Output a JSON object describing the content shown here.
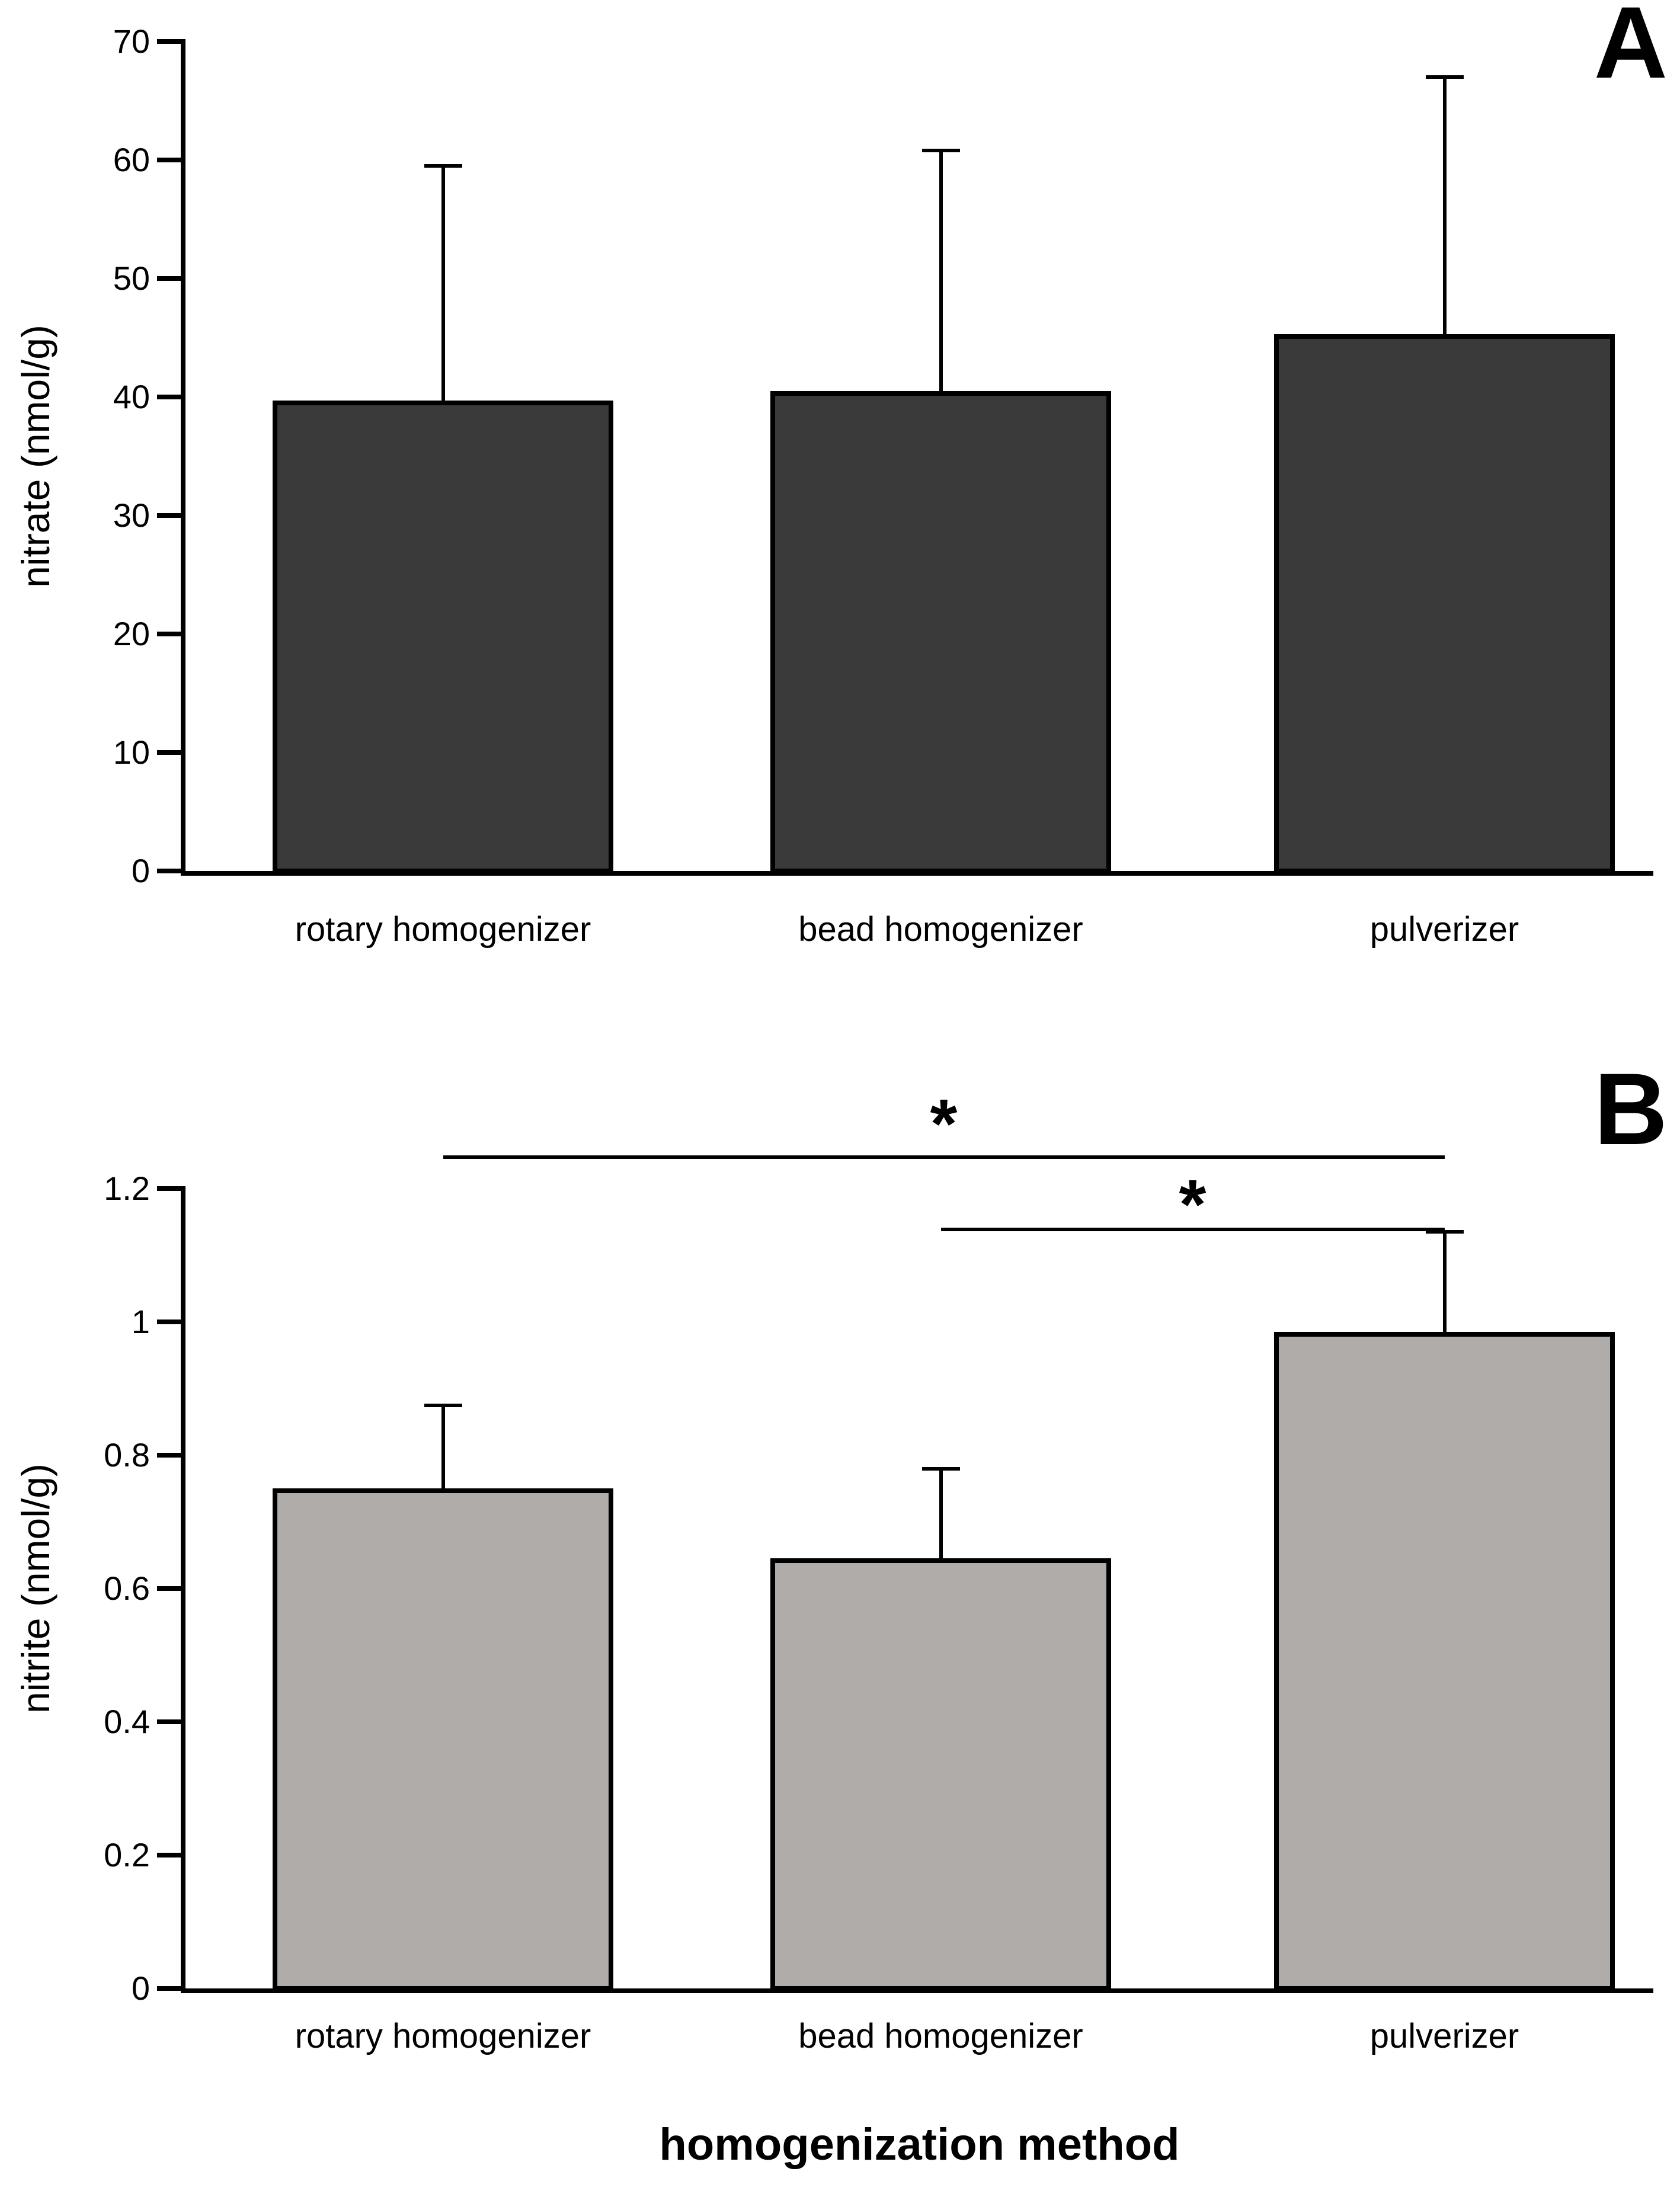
{
  "xlabel": "homogenization method",
  "chart_data": [
    {
      "type": "bar",
      "panel_label": "A",
      "title": "",
      "xlabel": "",
      "ylabel": "nitrate (nmol/g)",
      "categories": [
        "rotary homogenizer",
        "bead homogenizer",
        "pulverizer"
      ],
      "values": [
        39.7,
        40.5,
        45.3
      ],
      "errors_plus": [
        19.8,
        20.3,
        21.7
      ],
      "error_tops": [
        59.5,
        60.8,
        67.0
      ],
      "ylim": [
        0,
        70
      ],
      "ytick_step": 10,
      "ytick_labels": [
        "0",
        "10",
        "20",
        "30",
        "40",
        "50",
        "60",
        "70"
      ],
      "grid": "off",
      "legend": "none",
      "bar_color": "#3a3a3a",
      "bar_border_color": "#000000"
    },
    {
      "type": "bar",
      "panel_label": "B",
      "title": "",
      "xlabel": "homogenization method",
      "ylabel": "nitrite (nmol/g)",
      "categories": [
        "rotary homogenizer",
        "bead homogenizer",
        "pulverizer"
      ],
      "values": [
        0.75,
        0.645,
        0.985
      ],
      "errors_plus": [
        0.125,
        0.135,
        0.15
      ],
      "error_tops": [
        0.875,
        0.78,
        1.135
      ],
      "ylim": [
        0,
        1.2
      ],
      "ytick_step": 0.2,
      "ytick_labels": [
        "0",
        "0.2",
        "0.4",
        "0.6",
        "0.8",
        "1",
        "1.2"
      ],
      "grid": "off",
      "legend": "none",
      "bar_color": "#afacaa",
      "bar_border_color": "#000000",
      "significance": [
        {
          "from": 0,
          "to": 2,
          "label": "*"
        },
        {
          "from": 1,
          "to": 2,
          "label": "*"
        }
      ]
    }
  ]
}
